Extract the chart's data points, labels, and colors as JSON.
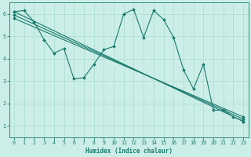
{
  "xlabel": "Humidex (Indice chaleur)",
  "bg_color": "#cceee8",
  "line_color": "#1a7a6e",
  "grid_color": "#aaddcc",
  "xlim": [
    -0.5,
    23.5
  ],
  "ylim": [
    0.5,
    6.5
  ],
  "xticks": [
    0,
    1,
    2,
    3,
    4,
    5,
    6,
    7,
    8,
    9,
    10,
    11,
    12,
    13,
    14,
    15,
    16,
    17,
    18,
    19,
    20,
    21,
    22,
    23
  ],
  "yticks": [
    1,
    2,
    3,
    4,
    5,
    6
  ],
  "line1_x": [
    0,
    1,
    2,
    3,
    4,
    5,
    6,
    7,
    8,
    9,
    10,
    11,
    12,
    13,
    14,
    15,
    16,
    17,
    18,
    19,
    20,
    21,
    22,
    23
  ],
  "line1_y": [
    6.1,
    6.15,
    5.65,
    4.85,
    4.25,
    4.45,
    3.1,
    3.15,
    3.75,
    4.4,
    4.55,
    6.0,
    6.2,
    4.95,
    6.15,
    5.75,
    4.95,
    3.5,
    2.65,
    3.75,
    1.7,
    1.7,
    1.4,
    1.2
  ],
  "line2_x": [
    0,
    23
  ],
  "line2_y": [
    6.1,
    1.2
  ],
  "line3_x": [
    0,
    23
  ],
  "line3_y": [
    5.95,
    1.3
  ],
  "line4_x": [
    0,
    23
  ],
  "line4_y": [
    5.8,
    1.4
  ]
}
